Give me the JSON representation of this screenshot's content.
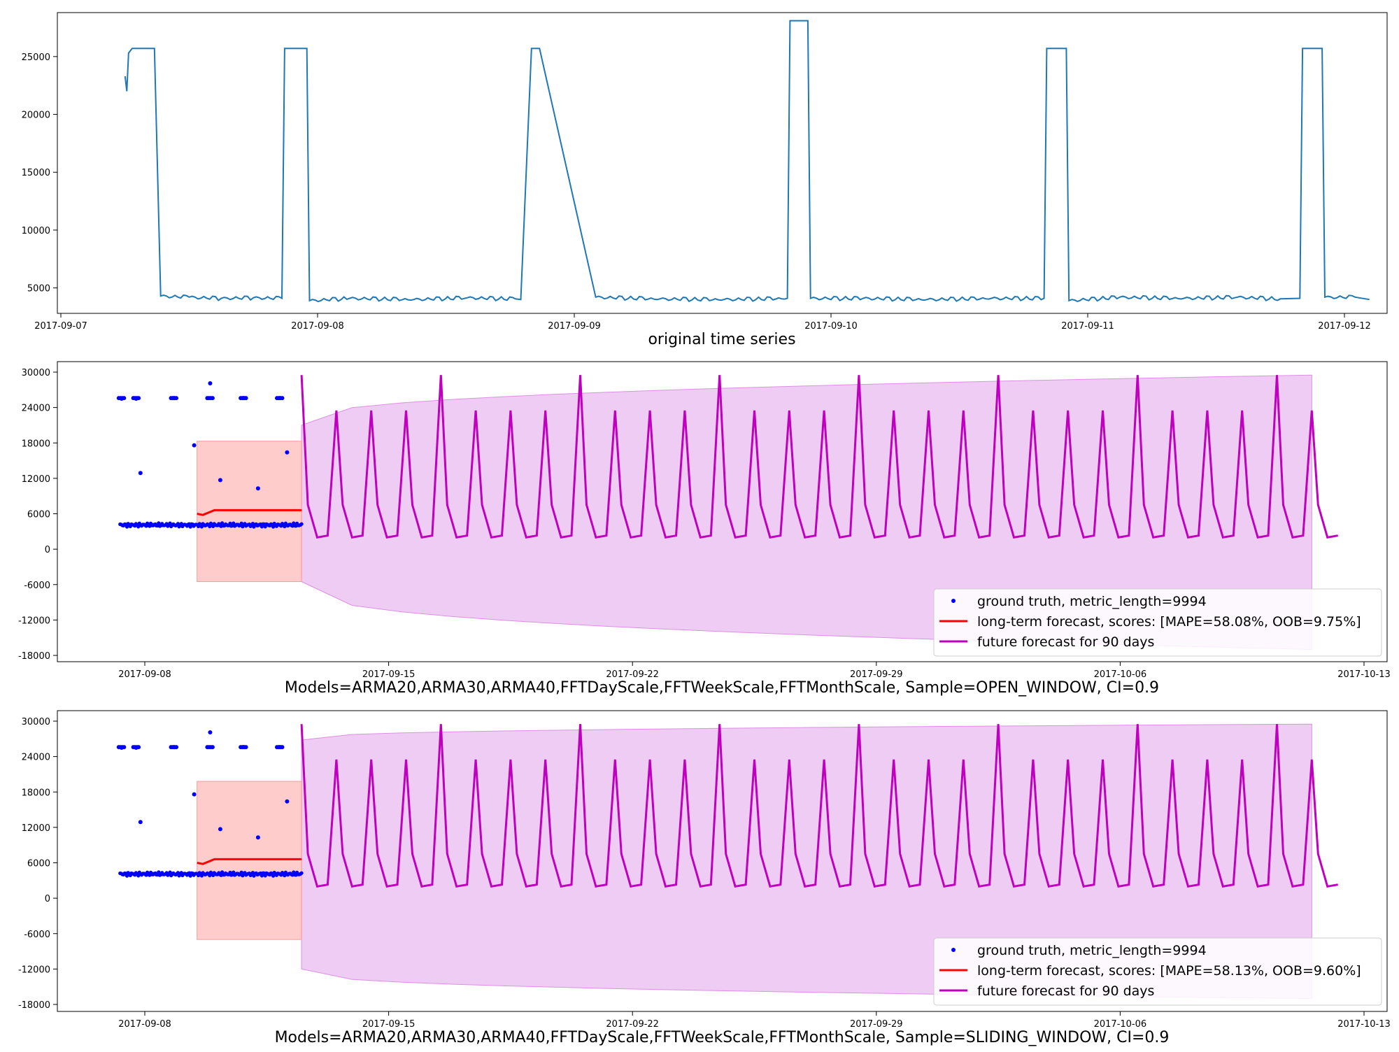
{
  "chart_data": [
    {
      "type": "line",
      "title": "",
      "xlabel": "original time series",
      "ylabel": "",
      "x_type": "date",
      "xlim": [
        "2017-09-07",
        "2017-09-12"
      ],
      "ylim": [
        2800,
        28800
      ],
      "x_ticks": [
        "2017-09-07",
        "2017-09-08",
        "2017-09-09",
        "2017-09-10",
        "2017-09-11",
        "2017-09-12"
      ],
      "y_ticks": [
        5000,
        10000,
        15000,
        20000,
        25000
      ],
      "grid": false,
      "series": [
        {
          "color": "#1f77b4",
          "x": [
            "2017-09-07 06:00",
            "2017-09-07 06:10",
            "2017-09-07 06:20",
            "2017-09-07 06:40",
            "2017-09-07 08:30",
            "2017-09-07 08:45",
            "2017-09-07 09:20",
            "2017-09-07 12:00",
            "2017-09-07 15:00",
            "2017-09-07 18:00",
            "2017-09-07 20:40",
            "2017-09-07 20:55",
            "2017-09-07 21:20",
            "2017-09-07 21:30",
            "2017-09-07 23:00",
            "2017-09-07 23:15",
            "2017-09-08 03:00",
            "2017-09-08 09:00",
            "2017-09-08 14:00",
            "2017-09-08 18:30",
            "2017-09-08 19:00",
            "2017-09-08 20:00",
            "2017-09-08 20:45",
            "2017-09-09 02:00",
            "2017-09-09 08:00",
            "2017-09-09 14:00",
            "2017-09-09 19:55",
            "2017-09-09 20:10",
            "2017-09-09 21:50",
            "2017-09-09 22:05",
            "2017-09-10 03:00",
            "2017-09-10 09:00",
            "2017-09-10 15:00",
            "2017-09-10 19:55",
            "2017-09-10 20:10",
            "2017-09-10 22:00",
            "2017-09-10 22:15",
            "2017-09-11 03:00",
            "2017-09-11 09:00",
            "2017-09-11 14:00",
            "2017-09-11 18:00",
            "2017-09-11 19:50",
            "2017-09-11 20:05",
            "2017-09-11 21:55",
            "2017-09-11 22:10",
            "2017-09-12 01:00",
            "2017-09-12 02:20"
          ],
          "values": [
            23300,
            22000,
            25300,
            25700,
            25700,
            25700,
            4300,
            4200,
            4100,
            4150,
            4100,
            25700,
            25700,
            25700,
            25700,
            3900,
            4100,
            4000,
            4150,
            4050,
            4000,
            25700,
            25700,
            4200,
            4050,
            4000,
            4100,
            28100,
            28100,
            4100,
            4100,
            4000,
            4100,
            4100,
            25700,
            25700,
            3900,
            4200,
            4100,
            4200,
            4050,
            4100,
            25700,
            25700,
            4200,
            4200,
            4000
          ]
        }
      ]
    },
    {
      "type": "line",
      "title": "",
      "xlabel": "Models=ARMA20,ARMA30,ARMA40,FFTDayScale,FFTWeekScale,FFTMonthScale, Sample=OPEN_WINDOW, CI=0.9",
      "ylabel": "",
      "x_type": "date",
      "xlim": [
        "2017-09-05",
        "2017-10-13"
      ],
      "ylim": [
        -18700,
        30200
      ],
      "x_ticks": [
        "2017-09-08",
        "2017-09-15",
        "2017-09-22",
        "2017-09-29",
        "2017-10-06",
        "2017-10-13"
      ],
      "y_ticks": [
        30000,
        24000,
        18000,
        12000,
        6000,
        0,
        -6000,
        -12000,
        -18000
      ],
      "grid": false,
      "legend_position": "lower-right",
      "series": [
        {
          "name": "ground truth, metric_length=9994",
          "style": "points",
          "color": "#0000ff",
          "x": [
            "2017-09-07 08:00",
            "2017-09-07 18:00",
            "2017-09-07 21:00",
            "2017-09-08 06:00",
            "2017-09-08 20:00",
            "2017-09-09 10:00",
            "2017-09-09 21:00",
            "2017-09-10 04:00",
            "2017-09-10 20:00",
            "2017-09-11 06:00",
            "2017-09-11 21:00",
            "2017-09-12 02:00"
          ],
          "values": [
            25500,
            25500,
            12900,
            4100,
            25600,
            17600,
            28100,
            11700,
            25600,
            10300,
            25600,
            16400
          ]
        },
        {
          "name": "long-term forecast, scores: [MAPE=58.08%, OOB=9.75%]",
          "style": "line",
          "color": "#ff0000",
          "band_color": "#ff9999",
          "x": [
            "2017-09-09 12:00",
            "2017-09-09 16:00",
            "2017-09-10 00:00",
            "2017-09-11 00:00",
            "2017-09-12 00:00",
            "2017-09-12 12:00"
          ],
          "values": [
            6000,
            5800,
            6600,
            6600,
            6600,
            6600
          ],
          "lower": [
            -5500,
            -5500,
            -5500,
            -5500,
            -5500,
            -5500
          ],
          "upper": [
            18300,
            18300,
            18300,
            18300,
            18300,
            18300
          ]
        },
        {
          "name": "future forecast for 90 days",
          "style": "line",
          "color": "#bf00bf",
          "band_color": "#dc8fe4",
          "x": [
            "2017-09-12 12:00",
            "2017-10-11 12:00"
          ],
          "weekly_peaks": [
            29500,
            23500,
            23500,
            23500
          ],
          "trough": 2000,
          "mid_level": 7500,
          "band_upper": [
            21000,
            29500
          ],
          "band_lower": [
            -5500,
            -17000
          ]
        }
      ]
    },
    {
      "type": "line",
      "title": "",
      "xlabel": "Models=ARMA20,ARMA30,ARMA40,FFTDayScale,FFTWeekScale,FFTMonthScale, Sample=SLIDING_WINDOW, CI=0.9",
      "ylabel": "",
      "x_type": "date",
      "xlim": [
        "2017-09-05",
        "2017-10-13"
      ],
      "ylim": [
        -18700,
        30200
      ],
      "x_ticks": [
        "2017-09-08",
        "2017-09-15",
        "2017-09-22",
        "2017-09-29",
        "2017-10-06",
        "2017-10-13"
      ],
      "y_ticks": [
        30000,
        24000,
        18000,
        12000,
        6000,
        0,
        -6000,
        -12000,
        -18000
      ],
      "grid": false,
      "legend_position": "lower-right",
      "series": [
        {
          "name": "ground truth, metric_length=9994",
          "style": "points",
          "color": "#0000ff",
          "x": [
            "2017-09-07 08:00",
            "2017-09-07 18:00",
            "2017-09-07 21:00",
            "2017-09-08 06:00",
            "2017-09-08 20:00",
            "2017-09-09 10:00",
            "2017-09-09 21:00",
            "2017-09-10 04:00",
            "2017-09-10 20:00",
            "2017-09-11 06:00",
            "2017-09-11 21:00",
            "2017-09-12 02:00"
          ],
          "values": [
            25500,
            25500,
            12900,
            4100,
            25600,
            17600,
            28100,
            11700,
            25600,
            10300,
            25600,
            16400
          ]
        },
        {
          "name": "long-term forecast, scores: [MAPE=58.13%, OOB=9.60%]",
          "style": "line",
          "color": "#ff0000",
          "band_color": "#ff9999",
          "x": [
            "2017-09-09 12:00",
            "2017-09-09 16:00",
            "2017-09-10 00:00",
            "2017-09-11 00:00",
            "2017-09-12 00:00",
            "2017-09-12 12:00"
          ],
          "values": [
            6000,
            5800,
            6600,
            6600,
            6600,
            6600
          ],
          "lower": [
            -7000,
            -7000,
            -7000,
            -7000,
            -7000,
            -7000
          ],
          "upper": [
            19800,
            19800,
            19800,
            19800,
            19800,
            19800
          ]
        },
        {
          "name": "future forecast for 90 days",
          "style": "line",
          "color": "#bf00bf",
          "band_color": "#dc8fe4",
          "x": [
            "2017-09-12 12:00",
            "2017-10-11 12:00"
          ],
          "weekly_peaks": [
            29500,
            23500,
            23500,
            23500
          ],
          "trough": 2000,
          "mid_level": 7500,
          "band_upper": [
            26800,
            29500
          ],
          "band_lower": [
            -12000,
            -17000
          ]
        }
      ]
    }
  ]
}
